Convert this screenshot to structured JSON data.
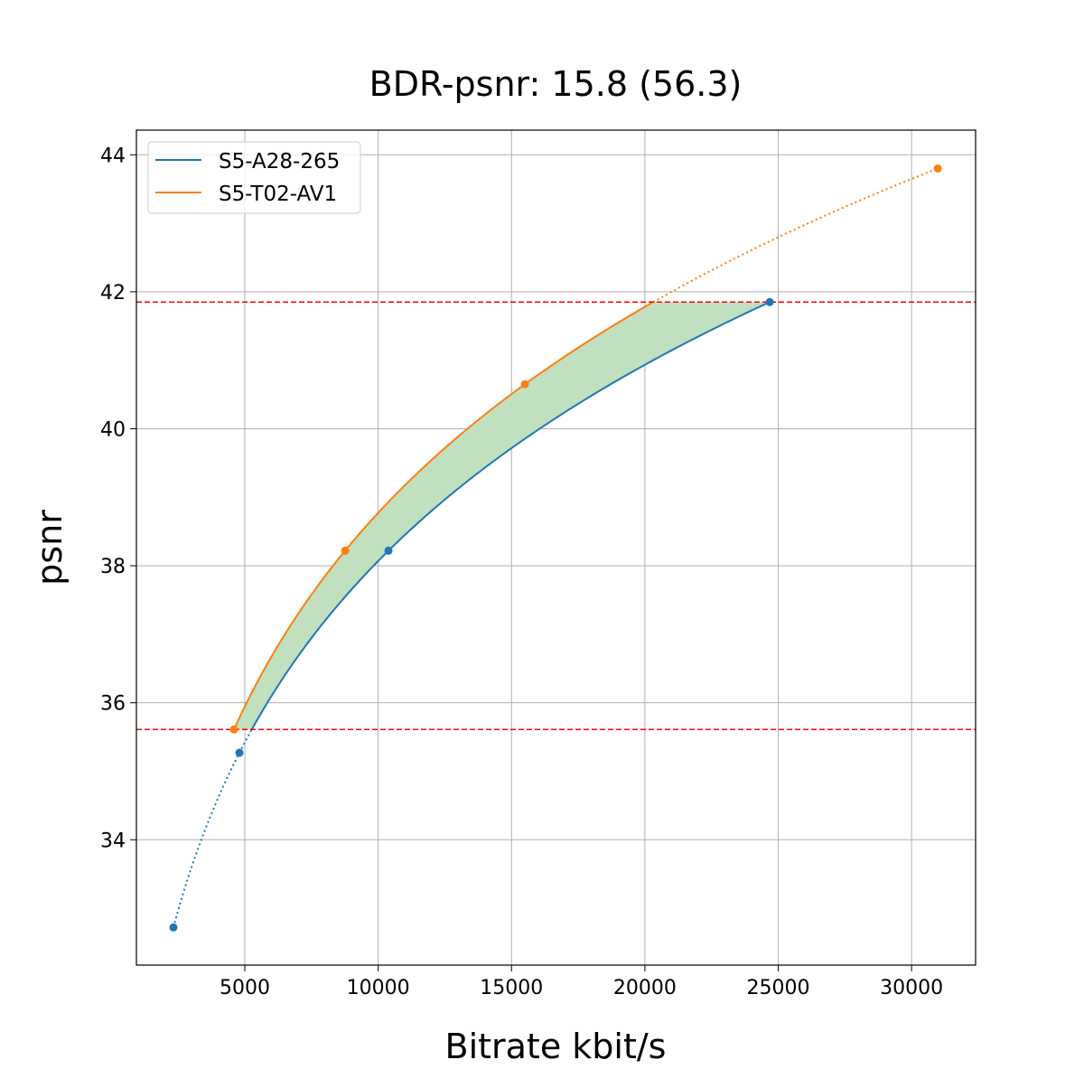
{
  "chart_data": {
    "type": "line",
    "title": "BDR-psnr: 15.8 (56.3)",
    "xlabel": "Bitrate kbit/s",
    "ylabel": "psnr",
    "xlim": [
      935,
      32400
    ],
    "ylim": [
      32.17,
      44.36
    ],
    "xticks": [
      5000,
      10000,
      15000,
      20000,
      25000,
      30000
    ],
    "yticks": [
      34,
      36,
      38,
      40,
      42,
      44
    ],
    "grid": true,
    "legend": "top-left",
    "series": [
      {
        "name": "S5-A28-265",
        "color": "#1f77b4",
        "x": [
          2324,
          4797,
          10386,
          24682
        ],
        "y": [
          32.72,
          35.27,
          38.22,
          41.85
        ]
      },
      {
        "name": "S5-T02-AV1",
        "color": "#ff7f0e",
        "x": [
          4594,
          8760,
          15501,
          30982
        ],
        "y": [
          35.61,
          38.22,
          40.65,
          43.8
        ]
      }
    ],
    "reference_lines": {
      "y": [
        35.61,
        41.85
      ],
      "color": "#ff0000",
      "style": "dashed"
    },
    "fill_between": {
      "color": "#c0e0c0",
      "y_range": [
        35.61,
        41.85
      ]
    }
  }
}
